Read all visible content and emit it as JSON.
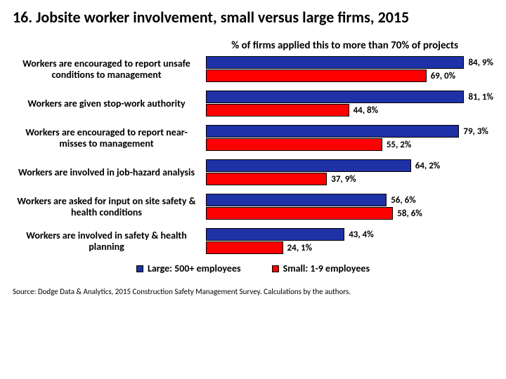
{
  "title": "16. Jobsite worker involvement, small versus large firms, 2015",
  "subtitle": "% of firms applied this to more than 70% of projects",
  "chart": {
    "type": "bar",
    "orientation": "horizontal",
    "xlim": [
      0,
      90
    ],
    "bar_border": "#000000",
    "background": "#ffffff",
    "series": [
      {
        "key": "large",
        "label": "Large: 500+ employees",
        "color": "#1f31a6"
      },
      {
        "key": "small",
        "label": "Small: 1-9 employees",
        "color": "#ff0000"
      }
    ],
    "categories": [
      {
        "label": "Workers are encouraged to report unsafe conditions to management",
        "large": {
          "value": 84.9,
          "text": "84, 9%"
        },
        "small": {
          "value": 69.0,
          "text": "69, 0%"
        }
      },
      {
        "label": "Workers are given stop-work authority",
        "large": {
          "value": 81.1,
          "text": "81, 1%"
        },
        "small": {
          "value": 44.8,
          "text": "44, 8%"
        }
      },
      {
        "label": "Workers are encouraged to report near-misses to management",
        "large": {
          "value": 79.3,
          "text": "79, 3%"
        },
        "small": {
          "value": 55.2,
          "text": "55, 2%"
        }
      },
      {
        "label": "Workers are involved in job-hazard analysis",
        "large": {
          "value": 64.2,
          "text": "64, 2%"
        },
        "small": {
          "value": 37.9,
          "text": "37, 9%"
        }
      },
      {
        "label": "Workers are asked for input on site safety & health conditions",
        "large": {
          "value": 56.6,
          "text": "56, 6%"
        },
        "small": {
          "value": 58.6,
          "text": "58, 6%"
        }
      },
      {
        "label": "Workers are involved in safety & health planning",
        "large": {
          "value": 43.4,
          "text": "43, 4%"
        },
        "small": {
          "value": 24.1,
          "text": "24, 1%"
        }
      }
    ]
  },
  "source": "Source: Dodge Data & Analytics, 2015 Construction Safety Management Survey. Calculations by the authors."
}
